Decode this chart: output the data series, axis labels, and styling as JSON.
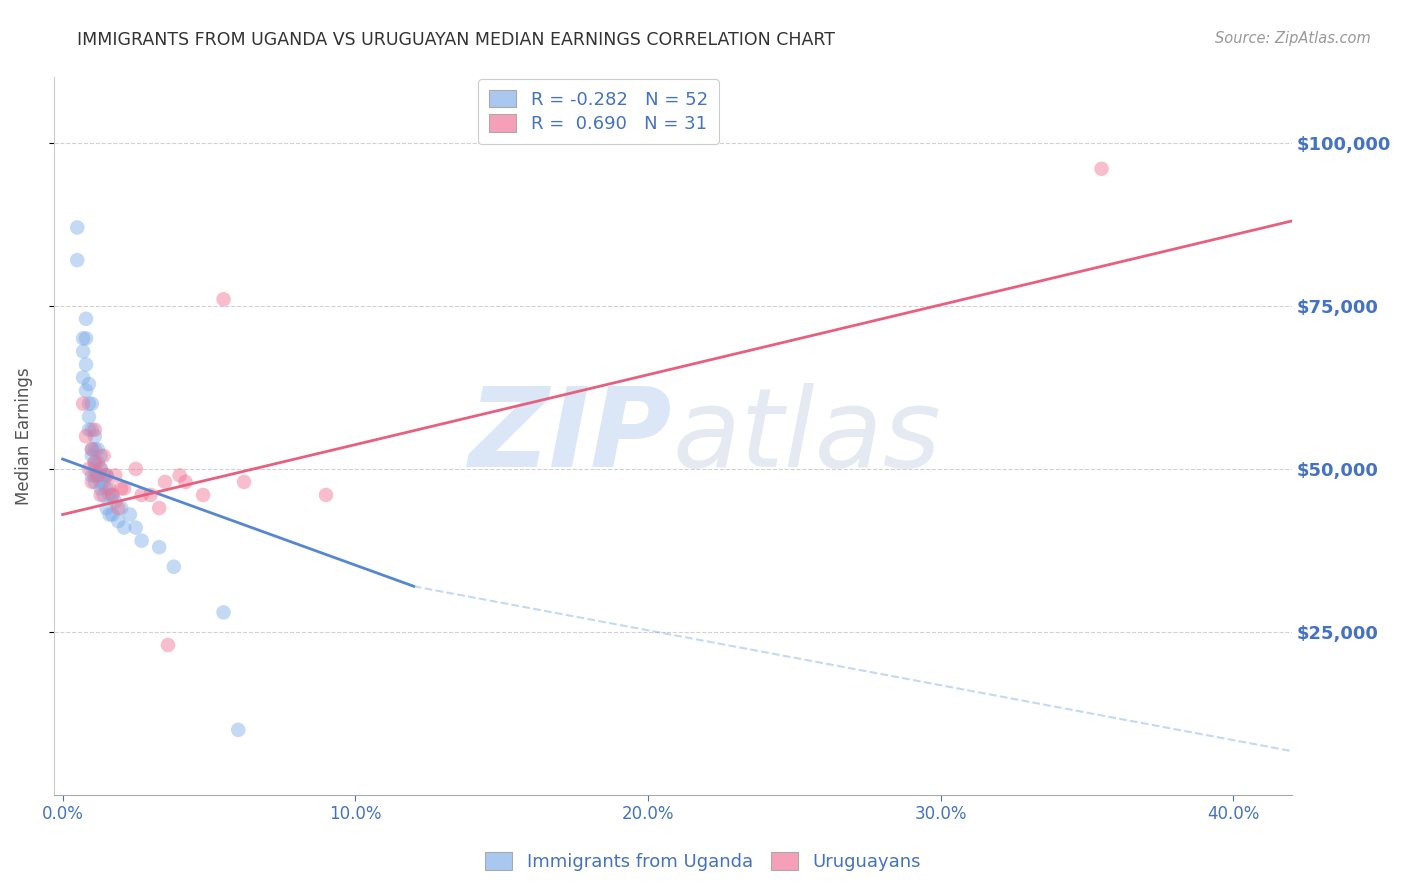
{
  "title": "IMMIGRANTS FROM UGANDA VS URUGUAYAN MEDIAN EARNINGS CORRELATION CHART",
  "source": "Source: ZipAtlas.com",
  "xlabel_ticks": [
    "0.0%",
    "10.0%",
    "20.0%",
    "30.0%",
    "40.0%"
  ],
  "xlabel_tick_vals": [
    0.0,
    0.1,
    0.2,
    0.3,
    0.4
  ],
  "ylabel": "Median Earnings",
  "ylabel_ticks": [
    25000,
    50000,
    75000,
    100000
  ],
  "ylabel_tick_labels": [
    "$25,000",
    "$50,000",
    "$75,000",
    "$100,000"
  ],
  "ylim": [
    0,
    110000
  ],
  "xlim": [
    -0.003,
    0.42
  ],
  "legend_entry1": {
    "color": "#a8c8f0",
    "R": "-0.282",
    "N": "52",
    "label": "Immigrants from Uganda"
  },
  "legend_entry2": {
    "color": "#f5a0b8",
    "R": "0.690",
    "N": "31",
    "label": "Uruguayans"
  },
  "blue_scatter_color": "#7aabe8",
  "pink_scatter_color": "#f07090",
  "blue_line_color": "#5588d0",
  "pink_line_color": "#e86080",
  "watermark_color": "#ccddf5",
  "blue_scatter": {
    "x": [
      0.005,
      0.005,
      0.007,
      0.007,
      0.007,
      0.008,
      0.008,
      0.008,
      0.008,
      0.009,
      0.009,
      0.009,
      0.009,
      0.01,
      0.01,
      0.01,
      0.01,
      0.01,
      0.011,
      0.011,
      0.011,
      0.011,
      0.011,
      0.011,
      0.012,
      0.012,
      0.012,
      0.013,
      0.013,
      0.013,
      0.013,
      0.014,
      0.014,
      0.014,
      0.015,
      0.015,
      0.015,
      0.016,
      0.016,
      0.017,
      0.017,
      0.018,
      0.019,
      0.02,
      0.021,
      0.023,
      0.025,
      0.027,
      0.033,
      0.038,
      0.055,
      0.06
    ],
    "y": [
      87000,
      82000,
      68000,
      64000,
      70000,
      73000,
      70000,
      66000,
      62000,
      60000,
      58000,
      63000,
      56000,
      60000,
      56000,
      53000,
      52000,
      49000,
      55000,
      53000,
      51000,
      49000,
      50000,
      48000,
      53000,
      51000,
      49000,
      52000,
      50000,
      48000,
      47000,
      49000,
      48000,
      46000,
      49000,
      47000,
      44000,
      46000,
      43000,
      46000,
      43000,
      45000,
      42000,
      44000,
      41000,
      43000,
      41000,
      39000,
      38000,
      35000,
      28000,
      10000
    ]
  },
  "pink_scatter": {
    "x": [
      0.007,
      0.008,
      0.009,
      0.01,
      0.01,
      0.011,
      0.011,
      0.012,
      0.013,
      0.013,
      0.014,
      0.015,
      0.016,
      0.017,
      0.018,
      0.019,
      0.02,
      0.021,
      0.025,
      0.027,
      0.03,
      0.033,
      0.035,
      0.036,
      0.04,
      0.042,
      0.048,
      0.055,
      0.062,
      0.09,
      0.355
    ],
    "y": [
      60000,
      55000,
      50000,
      53000,
      48000,
      56000,
      51000,
      49000,
      50000,
      46000,
      52000,
      49000,
      47000,
      46000,
      49000,
      44000,
      47000,
      47000,
      50000,
      46000,
      46000,
      44000,
      48000,
      23000,
      49000,
      48000,
      46000,
      76000,
      48000,
      46000,
      96000
    ]
  },
  "blue_solid_line": {
    "x": [
      0.0,
      0.12
    ],
    "y": [
      51500,
      32000
    ]
  },
  "blue_dashed_line": {
    "x": [
      0.12,
      0.5
    ],
    "y": [
      32000,
      0
    ]
  },
  "pink_solid_line": {
    "x": [
      0.0,
      0.42
    ],
    "y": [
      43000,
      88000
    ]
  },
  "background_color": "#ffffff",
  "grid_color": "#cccccc",
  "title_color": "#333333",
  "axis_label_color": "#4472c4"
}
